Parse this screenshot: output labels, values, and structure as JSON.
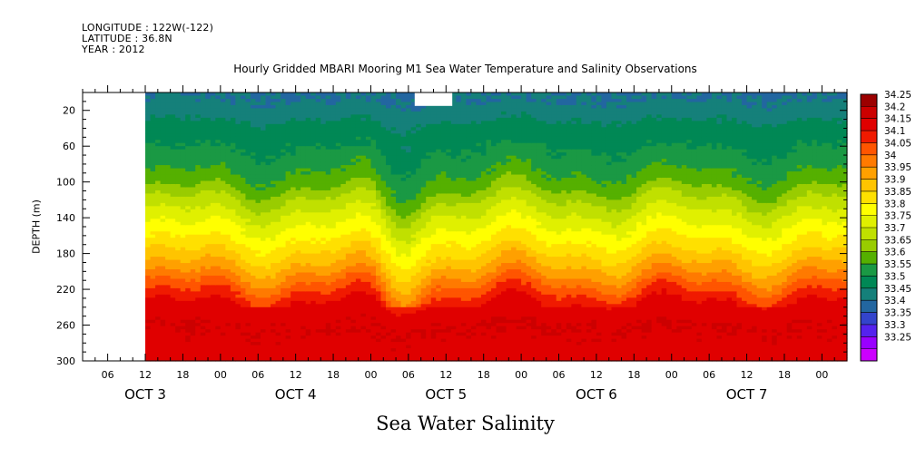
{
  "header": {
    "longitude": "LONGITUDE : 122W(-122)",
    "latitude": "LATITUDE : 36.8N",
    "year": "YEAR : 2012"
  },
  "chart_data": {
    "type": "heatmap",
    "title": "Hourly Gridded MBARI Mooring M1 Sea Water Temperature and Salinity Observations",
    "xlabel": "Sea Water Salinity",
    "ylabel": "DEPTH (m)",
    "y_ticks": [
      20,
      60,
      100,
      140,
      180,
      220,
      260,
      300
    ],
    "ylim": [
      300,
      0
    ],
    "x_hour_ticks": [
      "06",
      "12",
      "18",
      "00",
      "06",
      "12",
      "18",
      "00",
      "06",
      "12",
      "18",
      "00",
      "06",
      "12",
      "18",
      "00",
      "06",
      "12",
      "18",
      "00"
    ],
    "x_day_labels": [
      "OCT  3",
      "OCT  4",
      "OCT  5",
      "OCT  6",
      "OCT  7"
    ],
    "x_start": "2012-10-03 02:00",
    "data_start": "2012-10-03 12:00",
    "x_end": "2012-10-08 04:00",
    "missing_segment": "2012-10-05 07:00 to 2012-10-05 13:00, depth 0-15 m",
    "colorbar_levels": [
      "34.25",
      "34.2",
      "34.15",
      "34.1",
      "34.05",
      "34",
      "33.95",
      "33.9",
      "33.85",
      "33.8",
      "33.75",
      "33.7",
      "33.65",
      "33.6",
      "33.55",
      "33.5",
      "33.45",
      "33.4",
      "33.35",
      "33.3",
      "33.25"
    ],
    "colors": [
      "#9c0000",
      "#cc0000",
      "#e00000",
      "#f01a00",
      "#ff5500",
      "#ff7a00",
      "#ffa000",
      "#ffc400",
      "#ffe000",
      "#ffff00",
      "#e0f000",
      "#c0e000",
      "#99cc00",
      "#55b000",
      "#1a9944",
      "#008855",
      "#15807a",
      "#2266a0",
      "#3344cc",
      "#5522ee",
      "#9900ff",
      "#cc00ff"
    ],
    "depth_profile": [
      {
        "depth": 10,
        "salinity": 33.45
      },
      {
        "depth": 40,
        "salinity": 33.52
      },
      {
        "depth": 70,
        "salinity": 33.56
      },
      {
        "depth": 100,
        "salinity": 33.62
      },
      {
        "depth": 125,
        "salinity": 33.72
      },
      {
        "depth": 150,
        "salinity": 33.8
      },
      {
        "depth": 175,
        "salinity": 33.88
      },
      {
        "depth": 200,
        "salinity": 33.98
      },
      {
        "depth": 220,
        "salinity": 34.08
      },
      {
        "depth": 240,
        "salinity": 34.17
      },
      {
        "depth": 260,
        "salinity": 34.2
      },
      {
        "depth": 300,
        "salinity": 34.18
      }
    ]
  }
}
